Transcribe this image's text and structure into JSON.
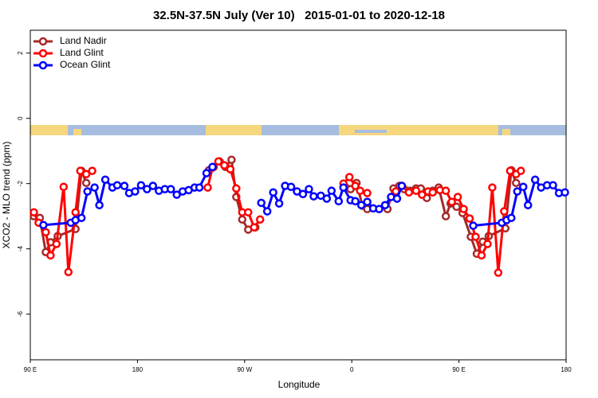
{
  "chart_data": {
    "type": "line",
    "title": "32.5N-37.5N July (Ver 10)   2015-01-01 to 2020-12-18",
    "xlabel": "Longitude",
    "ylabel": "XCO2 - MLO trend (ppm)",
    "xlim": [
      90,
      540
    ],
    "ylim": [
      -7.4,
      2.7
    ],
    "xticks": [
      {
        "value": 90,
        "label": "90 E"
      },
      {
        "value": 180,
        "label": "180"
      },
      {
        "value": 270,
        "label": "90 W"
      },
      {
        "value": 360,
        "label": "0"
      },
      {
        "value": 450,
        "label": "90 E"
      },
      {
        "value": 540,
        "label": "180"
      }
    ],
    "yticks": [
      -6,
      -4,
      -2,
      0,
      2
    ],
    "grid": false,
    "legend": "top-left",
    "series": [
      {
        "name": "Land Nadir",
        "color": "#a52a2a",
        "x": [
          93,
          98,
          103,
          107,
          113,
          128,
          133,
          137,
          null,
          240,
          244,
          249,
          254,
          259,
          263,
          268,
          273,
          279,
          null,
          355,
          359,
          364,
          369,
          373,
          null,
          390,
          395,
          400,
          404,
          409,
          414,
          418,
          423,
          428,
          433,
          439,
          443,
          448,
          453,
          460,
          465,
          470,
          475,
          489,
          494,
          498
        ],
        "values": [
          -3.0,
          -3.05,
          -4.1,
          -3.8,
          -3.61,
          -3.39,
          -1.61,
          -1.98,
          null,
          -1.59,
          -1.49,
          -1.32,
          -1.49,
          -1.27,
          -2.41,
          -3.1,
          -3.41,
          -3.34,
          null,
          -2.12,
          -2.17,
          -1.98,
          -2.68,
          -2.78,
          null,
          -2.78,
          -2.15,
          -2.07,
          -2.17,
          -2.22,
          -2.15,
          -2.15,
          -2.44,
          -2.22,
          -2.12,
          -3.0,
          -2.61,
          -2.71,
          -2.9,
          -3.63,
          -4.15,
          -3.78,
          -3.61,
          -3.37,
          -1.59,
          -1.98
        ]
      },
      {
        "name": "Land Glint",
        "color": "#ff0000",
        "x": [
          93,
          97,
          103,
          107,
          112,
          118,
          122,
          128,
          132,
          137,
          142,
          null,
          239,
          243,
          248,
          253,
          258,
          263,
          268,
          273,
          278,
          283,
          null,
          353,
          358,
          363,
          367,
          373,
          null,
          397,
          402,
          408,
          414,
          419,
          424,
          428,
          434,
          439,
          444,
          449,
          454,
          459,
          464,
          469,
          474,
          478,
          483,
          488,
          493,
          498,
          502
        ],
        "values": [
          -2.88,
          -3.2,
          -3.49,
          -4.2,
          -3.85,
          -2.1,
          -4.71,
          -2.88,
          -1.61,
          -1.71,
          -1.61,
          null,
          -2.12,
          -1.51,
          -1.32,
          -1.44,
          -1.56,
          -2.15,
          -2.88,
          -2.88,
          -3.34,
          -3.1,
          null,
          -2.0,
          -1.8,
          -2.07,
          -2.22,
          -2.29,
          null,
          -2.24,
          -2.07,
          -2.27,
          -2.22,
          -2.34,
          -2.24,
          -2.27,
          -2.2,
          -2.22,
          -2.56,
          -2.41,
          -2.78,
          -3.07,
          -3.63,
          -4.2,
          -3.85,
          -2.12,
          -4.73,
          -2.85,
          -1.61,
          -1.71,
          -1.61
        ]
      },
      {
        "name": "Ocean Glint",
        "color": "#0000ff",
        "x": [
          101,
          124,
          128,
          133,
          138,
          144,
          148,
          153,
          159,
          163,
          169,
          173,
          178,
          183,
          188,
          193,
          198,
          203,
          208,
          213,
          218,
          223,
          228,
          232,
          238,
          243,
          null,
          284,
          289,
          294,
          299,
          304,
          309,
          314,
          319,
          324,
          328,
          334,
          339,
          343,
          349,
          353,
          359,
          363,
          368,
          373,
          378,
          383,
          388,
          393,
          398,
          402,
          null,
          462,
          486,
          490,
          494,
          499,
          504,
          508,
          514,
          519,
          524,
          529,
          534,
          539
        ],
        "values": [
          -3.27,
          -3.2,
          -3.12,
          -3.05,
          -2.24,
          -2.12,
          -2.66,
          -1.88,
          -2.12,
          -2.05,
          -2.07,
          -2.29,
          -2.24,
          -2.05,
          -2.17,
          -2.07,
          -2.22,
          -2.17,
          -2.17,
          -2.34,
          -2.24,
          -2.2,
          -2.12,
          -2.12,
          -1.68,
          -1.49,
          null,
          -2.59,
          -2.85,
          -2.27,
          -2.61,
          -2.07,
          -2.1,
          -2.24,
          -2.32,
          -2.17,
          -2.39,
          -2.37,
          -2.46,
          -2.22,
          -2.54,
          -2.12,
          -2.51,
          -2.54,
          -2.66,
          -2.56,
          -2.76,
          -2.78,
          -2.66,
          -2.41,
          -2.46,
          -2.07,
          null,
          -3.29,
          -3.2,
          -3.12,
          -3.05,
          -2.24,
          -2.1,
          -2.66,
          -1.88,
          -2.12,
          -2.05,
          -2.05,
          -2.29,
          -2.27
        ]
      }
    ]
  }
}
